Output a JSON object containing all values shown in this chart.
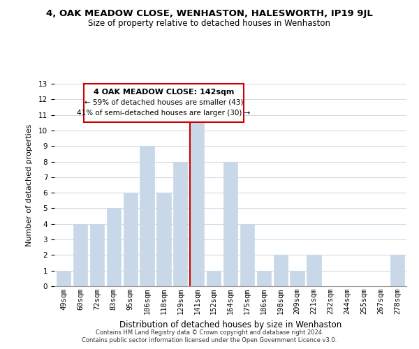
{
  "title": "4, OAK MEADOW CLOSE, WENHASTON, HALESWORTH, IP19 9JL",
  "subtitle": "Size of property relative to detached houses in Wenhaston",
  "xlabel": "Distribution of detached houses by size in Wenhaston",
  "ylabel": "Number of detached properties",
  "bar_labels": [
    "49sqm",
    "60sqm",
    "72sqm",
    "83sqm",
    "95sqm",
    "106sqm",
    "118sqm",
    "129sqm",
    "141sqm",
    "152sqm",
    "164sqm",
    "175sqm",
    "186sqm",
    "198sqm",
    "209sqm",
    "221sqm",
    "232sqm",
    "244sqm",
    "255sqm",
    "267sqm",
    "278sqm"
  ],
  "bar_values": [
    1,
    4,
    4,
    5,
    6,
    9,
    6,
    8,
    11,
    1,
    8,
    4,
    1,
    2,
    1,
    2,
    0,
    0,
    0,
    0,
    2
  ],
  "bar_color": "#c8d8e8",
  "highlight_index": 8,
  "highlight_line_color": "#cc0000",
  "ylim": [
    0,
    13
  ],
  "yticks": [
    0,
    1,
    2,
    3,
    4,
    5,
    6,
    7,
    8,
    9,
    10,
    11,
    12,
    13
  ],
  "annotation_title": "4 OAK MEADOW CLOSE: 142sqm",
  "annotation_line1": "← 59% of detached houses are smaller (43)",
  "annotation_line2": "41% of semi-detached houses are larger (30) →",
  "annotation_box_color": "#ffffff",
  "annotation_box_edge": "#cc0000",
  "footer_line1": "Contains HM Land Registry data © Crown copyright and database right 2024.",
  "footer_line2": "Contains public sector information licensed under the Open Government Licence v3.0.",
  "grid_color": "#d0dce8",
  "background_color": "#ffffff",
  "title_fontsize": 9.5,
  "subtitle_fontsize": 8.5,
  "xlabel_fontsize": 8.5,
  "ylabel_fontsize": 8.0,
  "tick_fontsize": 7.5,
  "annotation_title_fontsize": 8.0,
  "annotation_text_fontsize": 7.5,
  "footer_fontsize": 6.0
}
